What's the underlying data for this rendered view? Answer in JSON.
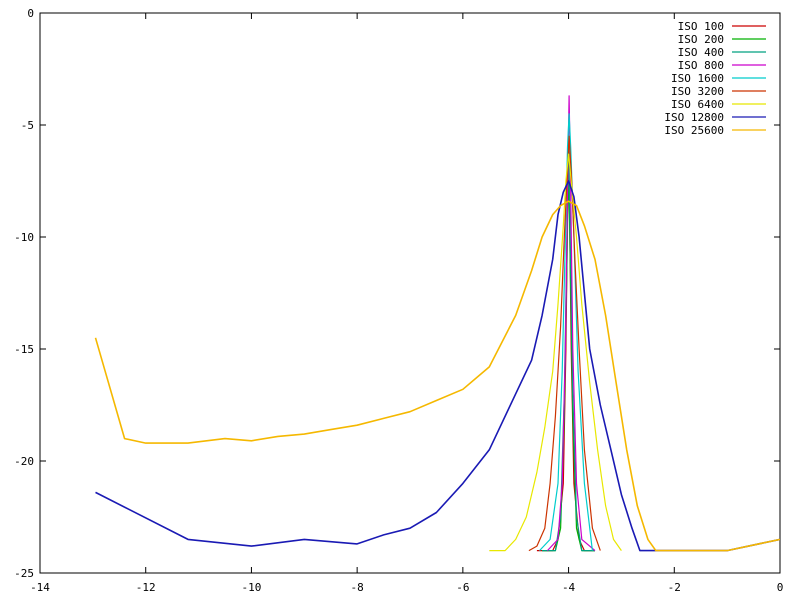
{
  "chart_data": {
    "type": "line",
    "title": "",
    "xlabel": "",
    "ylabel": "",
    "xlim": [
      -14,
      0
    ],
    "ylim": [
      -25,
      0
    ],
    "xticks": [
      -14,
      -12,
      -10,
      -8,
      -6,
      -4,
      -2,
      0
    ],
    "yticks": [
      0,
      -5,
      -10,
      -15,
      -20,
      -25
    ],
    "xtick_labels": [
      "-14",
      "-12",
      "-10",
      "-8",
      "-6",
      "-4",
      "-2",
      "0"
    ],
    "ytick_labels": [
      "0",
      "-5",
      "-10",
      "-15",
      "-20",
      "-25"
    ],
    "grid": false,
    "legend_position": "top-right",
    "series": [
      {
        "name": "ISO 100",
        "color": "#cc0000",
        "x": [
          -4.6,
          -4.3,
          -4.2,
          -4.1,
          -4.05,
          -4.02,
          -4.0,
          -3.98,
          -3.95,
          -3.9,
          -3.8,
          -3.7,
          -3.5
        ],
        "y": [
          -24,
          -24,
          -23.5,
          -21,
          -15,
          -9,
          -6.8,
          -9,
          -15,
          -21,
          -23.5,
          -24,
          -24
        ]
      },
      {
        "name": "ISO 200",
        "color": "#00b000",
        "x": [
          -4.5,
          -4.25,
          -4.15,
          -4.08,
          -4.03,
          -4.0,
          -3.97,
          -3.92,
          -3.85,
          -3.75,
          -3.5
        ],
        "y": [
          -24,
          -24,
          -23,
          -18,
          -11,
          -6.5,
          -11,
          -18,
          -23,
          -24,
          -24
        ]
      },
      {
        "name": "ISO 400",
        "color": "#00a080",
        "x": [
          -4.5,
          -4.25,
          -4.15,
          -4.08,
          -4.03,
          -4.0,
          -3.97,
          -3.92,
          -3.85,
          -3.75,
          -3.5
        ],
        "y": [
          -24,
          -24,
          -22.5,
          -17,
          -10,
          -5.6,
          -10,
          -17,
          -22.5,
          -24,
          -24
        ]
      },
      {
        "name": "ISO 800",
        "color": "#cc00cc",
        "x": [
          -4.4,
          -4.2,
          -4.12,
          -4.06,
          -4.02,
          -3.99,
          -3.96,
          -3.92,
          -3.85,
          -3.75,
          -3.5
        ],
        "y": [
          -24,
          -23.5,
          -21,
          -15,
          -8,
          -3.7,
          -8,
          -15,
          -21,
          -23.5,
          -24
        ]
      },
      {
        "name": "ISO 1600",
        "color": "#00cccc",
        "x": [
          -4.55,
          -4.35,
          -4.2,
          -4.12,
          -4.06,
          -4.02,
          -3.99,
          -3.96,
          -3.9,
          -3.82,
          -3.7,
          -3.55
        ],
        "y": [
          -24,
          -23.5,
          -21,
          -16,
          -10,
          -6,
          -4.5,
          -6,
          -10,
          -16,
          -21,
          -24
        ]
      },
      {
        "name": "ISO 3200",
        "color": "#cc3300",
        "x": [
          -4.75,
          -4.6,
          -4.45,
          -4.35,
          -4.25,
          -4.15,
          -4.08,
          -4.03,
          -3.99,
          -3.94,
          -3.88,
          -3.8,
          -3.7,
          -3.55,
          -3.4
        ],
        "y": [
          -24,
          -23.8,
          -23,
          -21,
          -18,
          -14,
          -10,
          -7.5,
          -5.5,
          -7.5,
          -11,
          -15,
          -19.5,
          -23,
          -24
        ]
      },
      {
        "name": "ISO 6400",
        "color": "#e8e800",
        "x": [
          -5.5,
          -5.2,
          -5.0,
          -4.8,
          -4.6,
          -4.45,
          -4.3,
          -4.2,
          -4.1,
          -4.05,
          -4.0,
          -3.95,
          -3.85,
          -3.75,
          -3.6,
          -3.45,
          -3.3,
          -3.15,
          -3.0
        ],
        "y": [
          -24,
          -24,
          -23.5,
          -22.5,
          -20.5,
          -18.5,
          -16,
          -13,
          -9.5,
          -7.5,
          -6.3,
          -7.5,
          -10,
          -13,
          -16.5,
          -19.5,
          -22,
          -23.5,
          -24
        ]
      },
      {
        "name": "ISO 12800",
        "color": "#1a1ab4",
        "x": [
          -12.95,
          -11.2,
          -10.0,
          -9.0,
          -8.0,
          -7.5,
          -7.0,
          -6.5,
          -6.0,
          -5.5,
          -5.0,
          -4.7,
          -4.5,
          -4.3,
          -4.2,
          -4.1,
          -4.0,
          -3.9,
          -3.8,
          -3.7,
          -3.6,
          -3.4,
          -3.2,
          -3.0,
          -2.8,
          -2.65,
          -2.5,
          -2.0,
          -1.0,
          0.0
        ],
        "y": [
          -21.4,
          -23.5,
          -23.8,
          -23.5,
          -23.7,
          -23.3,
          -23.0,
          -22.3,
          -21.0,
          -19.5,
          -17.0,
          -15.5,
          -13.5,
          -11.0,
          -9.0,
          -8.0,
          -7.5,
          -8.2,
          -10.0,
          -12.5,
          -15.0,
          -17.5,
          -19.5,
          -21.5,
          -23.0,
          -24.0,
          -24.0,
          -24.0,
          -24.0,
          -23.5
        ]
      },
      {
        "name": "ISO 25600",
        "color": "#f5b800",
        "x": [
          -12.95,
          -12.4,
          -12.0,
          -11.2,
          -10.5,
          -10.0,
          -9.5,
          -9.0,
          -8.5,
          -8.0,
          -7.5,
          -7.0,
          -6.5,
          -6.0,
          -5.5,
          -5.0,
          -4.7,
          -4.5,
          -4.3,
          -4.15,
          -4.0,
          -3.85,
          -3.7,
          -3.5,
          -3.3,
          -3.1,
          -2.9,
          -2.7,
          -2.5,
          -2.35,
          -2.0,
          -1.0,
          0.0
        ],
        "y": [
          -14.5,
          -19.0,
          -19.2,
          -19.2,
          -19.0,
          -19.1,
          -18.9,
          -18.8,
          -18.6,
          -18.4,
          -18.1,
          -17.8,
          -17.3,
          -16.8,
          -15.8,
          -13.5,
          -11.5,
          -10.0,
          -9.0,
          -8.6,
          -8.4,
          -8.6,
          -9.5,
          -11.0,
          -13.5,
          -16.5,
          -19.5,
          -22.0,
          -23.5,
          -24.0,
          -24.0,
          -24.0,
          -23.5
        ]
      }
    ]
  }
}
